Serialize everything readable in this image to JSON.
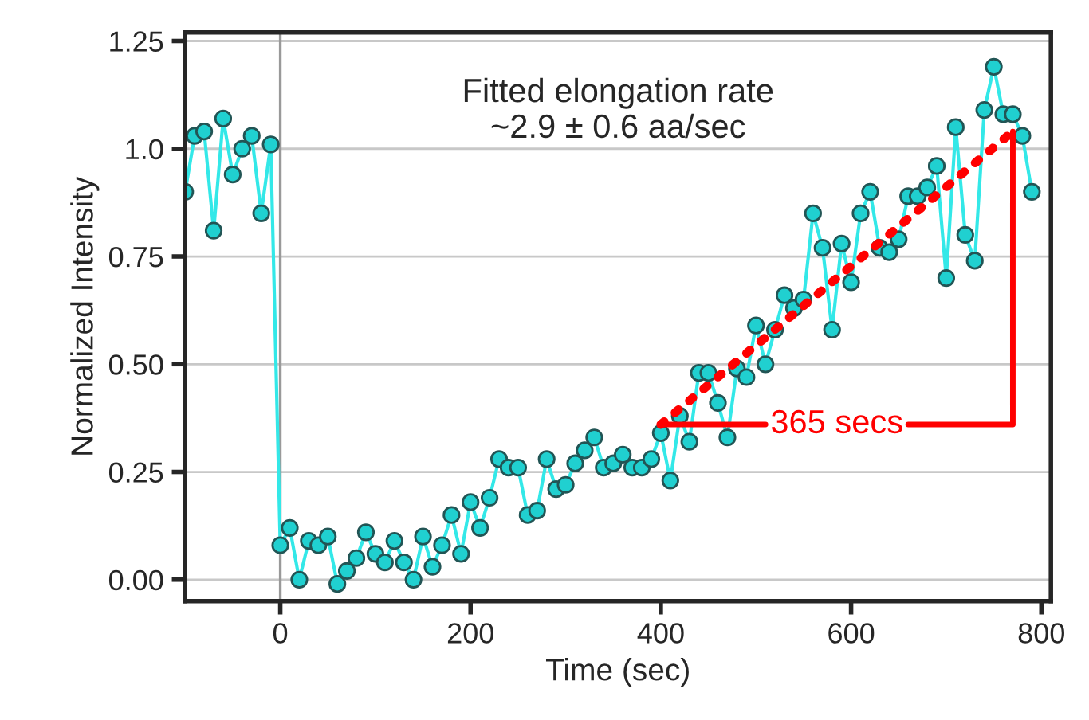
{
  "chart_data": {
    "type": "line",
    "xlabel": "Time (sec)",
    "ylabel": "Normalized Intensity",
    "xlim": [
      -100,
      810
    ],
    "ylim": [
      -0.05,
      1.27
    ],
    "xticks": [
      0,
      200,
      400,
      600,
      800
    ],
    "yticks": [
      {
        "value": 0,
        "label": "0.00"
      },
      {
        "value": 0.25,
        "label": "0.25"
      },
      {
        "value": 0.5,
        "label": "0.50"
      },
      {
        "value": 0.75,
        "label": "0.75"
      },
      {
        "value": 1.0,
        "label": "1.0"
      },
      {
        "value": 1.25,
        "label": "1.25"
      }
    ],
    "grid": "y",
    "marker": "circle",
    "line_style": "solid",
    "series": [
      {
        "color": "#33e8e8",
        "x": [
          -100,
          -90,
          -80,
          -70,
          -60,
          -50,
          -40,
          -30,
          -20,
          -10,
          0,
          10,
          20,
          30,
          40,
          50,
          60,
          70,
          80,
          90,
          100,
          110,
          120,
          130,
          140,
          150,
          160,
          170,
          180,
          190,
          200,
          210,
          220,
          230,
          240,
          250,
          260,
          270,
          280,
          290,
          300,
          310,
          320,
          330,
          340,
          350,
          360,
          370,
          380,
          390,
          400,
          410,
          420,
          430,
          440,
          450,
          460,
          470,
          480,
          490,
          500,
          510,
          520,
          530,
          540,
          550,
          560,
          570,
          580,
          590,
          600,
          610,
          620,
          630,
          640,
          650,
          660,
          670,
          680,
          690,
          700,
          710,
          720,
          730,
          740,
          750,
          760,
          770,
          780,
          790
        ],
        "values": [
          0.9,
          1.03,
          1.04,
          0.81,
          1.07,
          0.94,
          1.0,
          1.03,
          0.85,
          1.01,
          0.08,
          0.12,
          0.0,
          0.09,
          0.08,
          0.1,
          -0.01,
          0.02,
          0.05,
          0.11,
          0.06,
          0.04,
          0.09,
          0.04,
          0.0,
          0.1,
          0.03,
          0.08,
          0.15,
          0.06,
          0.18,
          0.12,
          0.19,
          0.28,
          0.26,
          0.26,
          0.15,
          0.16,
          0.28,
          0.21,
          0.22,
          0.27,
          0.3,
          0.33,
          0.26,
          0.27,
          0.29,
          0.26,
          0.26,
          0.28,
          0.34,
          0.23,
          0.38,
          0.32,
          0.48,
          0.48,
          0.41,
          0.33,
          0.49,
          0.47,
          0.59,
          0.5,
          0.58,
          0.66,
          0.63,
          0.65,
          0.85,
          0.77,
          0.58,
          0.78,
          0.69,
          0.85,
          0.9,
          0.77,
          0.76,
          0.79,
          0.89,
          0.89,
          0.91,
          0.96,
          0.7,
          1.05,
          0.8,
          0.74,
          1.09,
          1.19,
          1.08,
          1.08,
          1.03,
          0.9
        ]
      },
      {
        "color": "#ff0000",
        "marker": "none",
        "line_style": "dotted",
        "x": [
          400,
          770
        ],
        "values": [
          0.36,
          1.04
        ]
      }
    ],
    "ref_lines": [
      {
        "axis": "x",
        "value": 0,
        "color": "#999999"
      }
    ],
    "annotations": [
      "Fitted elongation rate\n~2.9 ± 0.6 aa/sec",
      {
        "text": "365 secs",
        "x": 770,
        "y": 1.04
      }
    ]
  }
}
